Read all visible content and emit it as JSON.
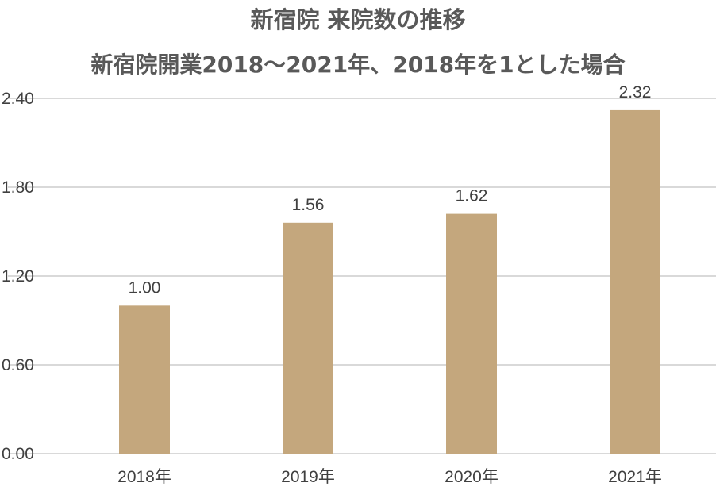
{
  "chart_data": {
    "type": "bar",
    "title": "新宿院 来院数の推移",
    "subtitle": "新宿院開業2018〜2021年、2018年を1とした場合",
    "categories": [
      "2018年",
      "2019年",
      "2020年",
      "2021年"
    ],
    "values": [
      1.0,
      1.56,
      1.62,
      2.32
    ],
    "value_labels": [
      "1.00",
      "1.56",
      "1.62",
      "2.32"
    ],
    "y_ticks": [
      "0.00",
      "0.60",
      "1.20",
      "1.80",
      "2.40"
    ],
    "y_tick_values": [
      0,
      0.6,
      1.2,
      1.8,
      2.4
    ],
    "ylim": [
      0,
      2.4
    ],
    "xlabel": "",
    "ylabel": "",
    "grid": true,
    "legend": "none",
    "bar_color": "#C4A77D",
    "grid_color": "#D9D9D9",
    "text_color": "#404040",
    "title_color": "#595959"
  }
}
